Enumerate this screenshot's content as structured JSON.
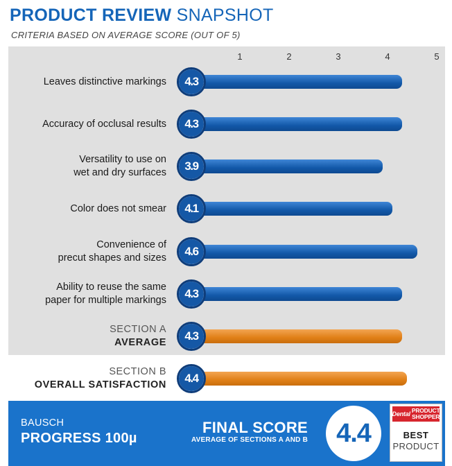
{
  "header": {
    "title_bold": "PRODUCT REVIEW",
    "title_light": "SNAPSHOT",
    "subtitle": "CRITERIA BASED ON AVERAGE SCORE (OUT OF 5)"
  },
  "chart_data": {
    "type": "bar",
    "orientation": "horizontal",
    "xlim": [
      0,
      5
    ],
    "ticks": [
      1,
      2,
      3,
      4,
      5
    ],
    "categories": [
      {
        "line1": "Leaves distinctive markings",
        "line2": ""
      },
      {
        "line1": "Accuracy of occlusal results",
        "line2": ""
      },
      {
        "line1": "Versatility to use on",
        "line2": "wet and dry surfaces"
      },
      {
        "line1": "Color does not smear",
        "line2": ""
      },
      {
        "line1": "Convenience of",
        "line2": "precut shapes and sizes"
      },
      {
        "line1": "Ability to reuse the same",
        "line2": "paper for multiple markings"
      },
      {
        "line1": "SECTION A",
        "line2": "AVERAGE"
      },
      {
        "line1": "SECTION B",
        "line2": "OVERALL SATISFACTION"
      }
    ],
    "values": [
      4.3,
      4.3,
      3.9,
      4.1,
      4.6,
      4.3,
      4.3,
      4.4
    ],
    "labels": [
      "4.3",
      "4.3",
      "3.9",
      "4.1",
      "4.6",
      "4.3",
      "4.3",
      "4.4"
    ],
    "kinds": [
      "criterion",
      "criterion",
      "criterion",
      "criterion",
      "criterion",
      "criterion",
      "section",
      "section"
    ],
    "colors": {
      "criterion": "#1558a6",
      "section": "#e07f17"
    }
  },
  "footer": {
    "brand": "BAUSCH",
    "product": "PROGRESS 100µ",
    "final_label": "FINAL SCORE",
    "final_sub": "AVERAGE OF SECTIONS A AND B",
    "final_score": "4.4",
    "award_logo_word": "Dental",
    "award_logo_title": "PRODUCT SHOPPER",
    "award_best": "BEST",
    "award_product": "PRODUCT"
  }
}
